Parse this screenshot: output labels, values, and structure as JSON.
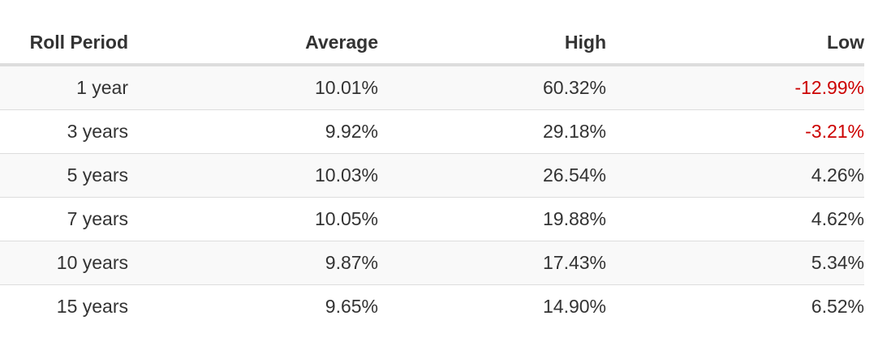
{
  "table": {
    "headers": [
      "Roll Period",
      "Average",
      "High",
      "Low"
    ],
    "negative_color": "#cc0000",
    "rows": [
      {
        "period": "1 year",
        "average": "10.01%",
        "high": "60.32%",
        "low": "-12.99%",
        "low_negative": true
      },
      {
        "period": "3 years",
        "average": "9.92%",
        "high": "29.18%",
        "low": "-3.21%",
        "low_negative": true
      },
      {
        "period": "5 years",
        "average": "10.03%",
        "high": "26.54%",
        "low": "4.26%",
        "low_negative": false
      },
      {
        "period": "7 years",
        "average": "10.05%",
        "high": "19.88%",
        "low": "4.62%",
        "low_negative": false
      },
      {
        "period": "10 years",
        "average": "9.87%",
        "high": "17.43%",
        "low": "5.34%",
        "low_negative": false
      },
      {
        "period": "15 years",
        "average": "9.65%",
        "high": "14.90%",
        "low": "6.52%",
        "low_negative": false
      }
    ]
  }
}
